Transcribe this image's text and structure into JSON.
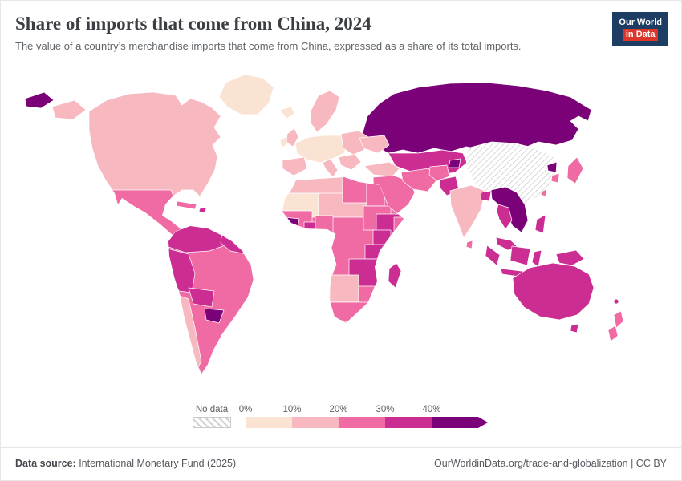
{
  "header": {
    "title": "Share of imports that come from China, 2024",
    "subtitle": "The value of a country’s merchandise imports that come from China, expressed as a share of its total imports."
  },
  "logo": {
    "line1": "Our World",
    "line2": "in Data",
    "bg_color": "#1d3d63",
    "accent_color": "#dc362b"
  },
  "legend": {
    "no_data_label": "No data",
    "no_data_color": "#d2d2d2",
    "ticks": [
      "0%",
      "10%",
      "20%",
      "30%",
      "40%"
    ],
    "bins": [
      {
        "label": "0-10%",
        "color": "#fbe3d4"
      },
      {
        "label": "10-20%",
        "color": "#f8b8c0"
      },
      {
        "label": "20-30%",
        "color": "#f06ba4"
      },
      {
        "label": "30-40%",
        "color": "#cc2d92"
      },
      {
        "label": "40%+",
        "color": "#7a0177"
      }
    ]
  },
  "footer": {
    "source_label": "Data source:",
    "source_value": " International Monetary Fund (2025)",
    "credit": "OurWorldinData.org/trade-and-globalization | CC BY"
  },
  "chart_data": {
    "type": "heatmap",
    "subtype": "choropleth-world-map",
    "title": "Share of imports that come from China, 2024",
    "unit": "% of total merchandise imports",
    "source": "International Monetary Fund (2025)",
    "legend_bins": [
      "0-10%",
      "10-20%",
      "20-30%",
      "30-40%",
      "40%+",
      "No data"
    ],
    "regions": [
      {
        "id": "greenland",
        "name": "Greenland",
        "bin": "0-10%"
      },
      {
        "id": "iceland",
        "name": "Iceland",
        "bin": "0-10%"
      },
      {
        "id": "russia-east",
        "name": "Russia (Far East)",
        "bin": "40%+"
      },
      {
        "id": "alaska",
        "name": "United States (Alaska)",
        "bin": "10-20%"
      },
      {
        "id": "north-america",
        "name": "Canada & United States",
        "bin": "10-20%"
      },
      {
        "id": "mexico-central-america",
        "name": "Mexico & Central America",
        "bin": "20-30%"
      },
      {
        "id": "cuba",
        "name": "Cuba",
        "bin": "20-30%"
      },
      {
        "id": "hispaniola",
        "name": "Hispaniola",
        "bin": "30-40%"
      },
      {
        "id": "south-america",
        "name": "Brazil & Argentina",
        "bin": "20-30%"
      },
      {
        "id": "colombia-venezuela",
        "name": "Colombia & Venezuela",
        "bin": "30-40%"
      },
      {
        "id": "guianas",
        "name": "Guianas",
        "bin": "30-40%"
      },
      {
        "id": "ecuador-peru",
        "name": "Ecuador & Peru",
        "bin": "30-40%"
      },
      {
        "id": "bolivia",
        "name": "Bolivia",
        "bin": "30-40%"
      },
      {
        "id": "paraguay",
        "name": "Paraguay",
        "bin": "40%+"
      },
      {
        "id": "chile",
        "name": "Chile",
        "bin": "10-20%"
      },
      {
        "id": "uk",
        "name": "United Kingdom",
        "bin": "10-20%"
      },
      {
        "id": "ireland",
        "name": "Ireland",
        "bin": "0-10%"
      },
      {
        "id": "scandinavia",
        "name": "Scandinavia",
        "bin": "10-20%"
      },
      {
        "id": "western-europe",
        "name": "Western Europe",
        "bin": "0-10%"
      },
      {
        "id": "iberia",
        "name": "Spain & Portugal",
        "bin": "10-20%"
      },
      {
        "id": "italy",
        "name": "Italy",
        "bin": "10-20%"
      },
      {
        "id": "eastern-europe",
        "name": "Eastern Europe",
        "bin": "10-20%"
      },
      {
        "id": "balkans",
        "name": "Balkans",
        "bin": "10-20%"
      },
      {
        "id": "ukraine",
        "name": "Ukraine & Belarus",
        "bin": "10-20%"
      },
      {
        "id": "turkey",
        "name": "Turkey",
        "bin": "10-20%"
      },
      {
        "id": "russia",
        "name": "Russia",
        "bin": "40%+"
      },
      {
        "id": "kazakhstan",
        "name": "Kazakhstan & Central Asia",
        "bin": "30-40%"
      },
      {
        "id": "kyrgyzstan",
        "name": "Kyrgyzstan",
        "bin": "40%+"
      },
      {
        "id": "china",
        "name": "China",
        "bin": "No data"
      },
      {
        "id": "middle-east",
        "name": "Arabian Peninsula & Iraq",
        "bin": "20-30%"
      },
      {
        "id": "iran",
        "name": "Iran",
        "bin": "20-30%"
      },
      {
        "id": "afghanistan",
        "name": "Afghanistan",
        "bin": "20-30%"
      },
      {
        "id": "pakistan",
        "name": "Pakistan",
        "bin": "30-40%"
      },
      {
        "id": "india",
        "name": "India",
        "bin": "10-20%"
      },
      {
        "id": "bangladesh",
        "name": "Bangladesh",
        "bin": "30-40%"
      },
      {
        "id": "sri-lanka",
        "name": "Sri Lanka",
        "bin": "20-30%"
      },
      {
        "id": "indochina",
        "name": "Myanmar, Laos, Vietnam & Cambodia",
        "bin": "40%+"
      },
      {
        "id": "thailand",
        "name": "Thailand",
        "bin": "30-40%"
      },
      {
        "id": "malaysia",
        "name": "Malaysia",
        "bin": "30-40%"
      },
      {
        "id": "indonesia",
        "name": "Indonesia",
        "bin": "30-40%"
      },
      {
        "id": "philippines",
        "name": "Philippines",
        "bin": "30-40%"
      },
      {
        "id": "japan",
        "name": "Japan",
        "bin": "20-30%"
      },
      {
        "id": "south-korea",
        "name": "South Korea",
        "bin": "20-30%"
      },
      {
        "id": "north-korea",
        "name": "North Korea",
        "bin": "40%+"
      },
      {
        "id": "taiwan",
        "name": "Taiwan",
        "bin": "20-30%"
      },
      {
        "id": "papua-new-guinea",
        "name": "Papua New Guinea",
        "bin": "30-40%"
      },
      {
        "id": "australia",
        "name": "Australia",
        "bin": "30-40%"
      },
      {
        "id": "new-zealand",
        "name": "New Zealand",
        "bin": "20-30%"
      },
      {
        "id": "pacific-islands",
        "name": "Pacific Islands",
        "bin": "30-40%"
      },
      {
        "id": "north-africa",
        "name": "Morocco & Algeria",
        "bin": "10-20%"
      },
      {
        "id": "libya",
        "name": "Libya",
        "bin": "20-30%"
      },
      {
        "id": "egypt",
        "name": "Egypt",
        "bin": "20-30%"
      },
      {
        "id": "sahara-west",
        "name": "Mauritania & Mali",
        "bin": "0-10%"
      },
      {
        "id": "sahel-east",
        "name": "Niger & Chad",
        "bin": "10-20%"
      },
      {
        "id": "sudan",
        "name": "Sudan",
        "bin": "20-30%"
      },
      {
        "id": "west-africa",
        "name": "West Africa",
        "bin": "20-30%"
      },
      {
        "id": "guinea",
        "name": "Guinea",
        "bin": "40%+"
      },
      {
        "id": "ghana",
        "name": "Ghana",
        "bin": "30-40%"
      },
      {
        "id": "nigeria",
        "name": "Nigeria",
        "bin": "20-30%"
      },
      {
        "id": "africa-base",
        "name": "Central Africa",
        "bin": "20-30%"
      },
      {
        "id": "ethiopia",
        "name": "Ethiopia",
        "bin": "30-40%"
      },
      {
        "id": "somalia",
        "name": "Somalia",
        "bin": "20-30%"
      },
      {
        "id": "kenya",
        "name": "Kenya",
        "bin": "30-40%"
      },
      {
        "id": "tanzania",
        "name": "Tanzania",
        "bin": "30-40%"
      },
      {
        "id": "southeast-africa",
        "name": "Zambia, Zimbabwe & Mozambique",
        "bin": "30-40%"
      },
      {
        "id": "namibia-botswana",
        "name": "Namibia & Botswana",
        "bin": "10-20%"
      },
      {
        "id": "south-africa",
        "name": "South Africa",
        "bin": "20-30%"
      },
      {
        "id": "madagascar",
        "name": "Madagascar",
        "bin": "30-40%"
      }
    ]
  }
}
